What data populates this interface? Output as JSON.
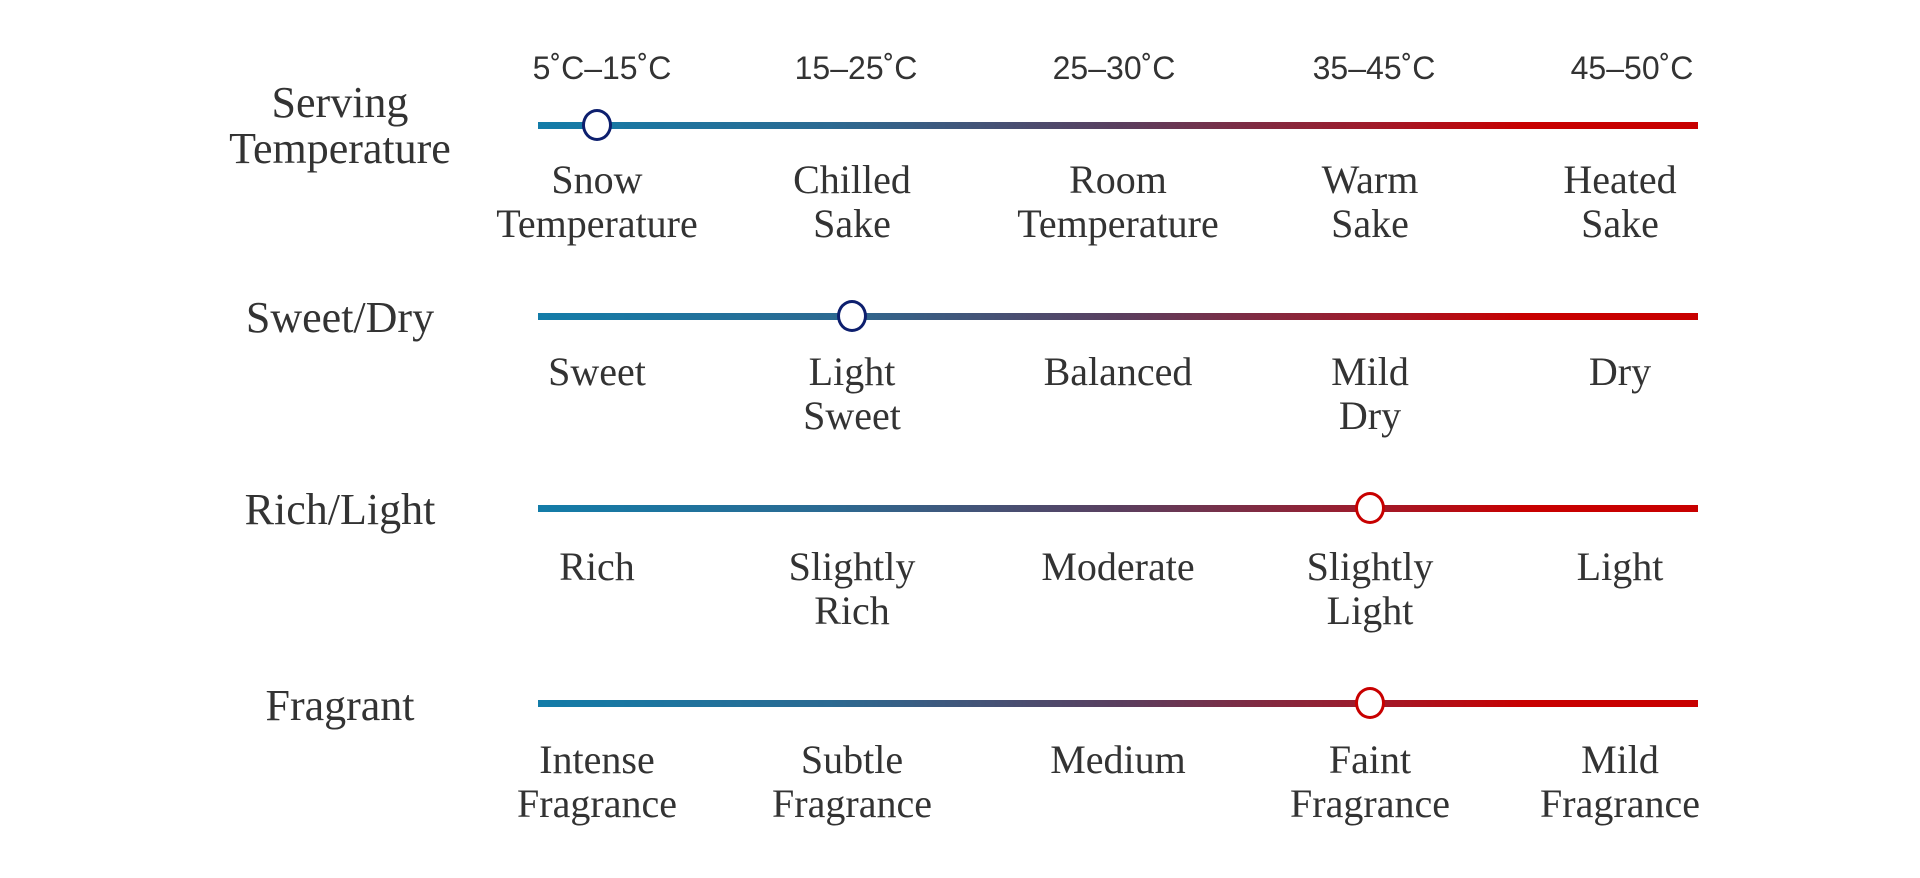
{
  "colors": {
    "gradient_start": "#137ca8",
    "gradient_end": "#c80000",
    "marker_cool": "#0d1f6e",
    "marker_warm": "#c80000",
    "text": "#333333"
  },
  "temperature_ranges": [
    "5˚C–15˚C",
    "15–25˚C",
    "25–30˚C",
    "35–45˚C",
    "45–50˚C"
  ],
  "rows": [
    {
      "title": "Serving\nTemperature",
      "selected_index": 0,
      "marker_color": "#0d1f6e",
      "categories": [
        "Snow\nTemperature",
        "Chilled\nSake",
        "Room\nTemperature",
        "Warm\nSake",
        "Heated\nSake"
      ]
    },
    {
      "title": "Sweet/Dry",
      "selected_index": 1,
      "marker_color": "#0d1f6e",
      "categories": [
        "Sweet",
        "Light\nSweet",
        "Balanced",
        "Mild\nDry",
        "Dry"
      ]
    },
    {
      "title": "Rich/Light",
      "selected_index": 3,
      "marker_color": "#c80000",
      "categories": [
        "Rich",
        "Slightly\nRich",
        "Moderate",
        "Slightly\nLight",
        "Light"
      ]
    },
    {
      "title": "Fragrant",
      "selected_index": 3,
      "marker_color": "#c80000",
      "categories": [
        "Intense\nFragrance",
        "Subtle\nFragrance",
        "Medium",
        "Faint\nFragrance",
        "Mild\nFragrance"
      ]
    }
  ]
}
